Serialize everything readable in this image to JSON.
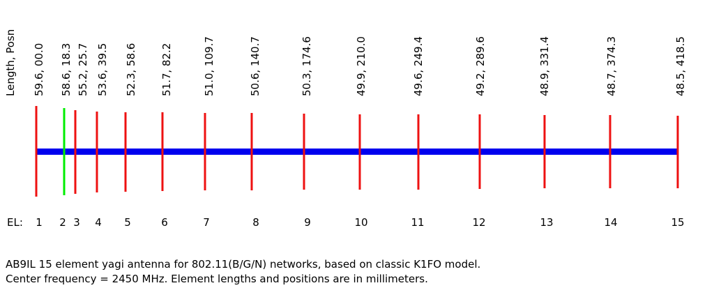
{
  "header_label": "Length, Posn",
  "el_label": "EL:",
  "elements": [
    {
      "label": "59.6, 00.0",
      "number": "1"
    },
    {
      "label": "58.6, 18.3",
      "number": "2"
    },
    {
      "label": "55.2, 25.7",
      "number": "3"
    },
    {
      "label": "53.6, 39.5",
      "number": "4"
    },
    {
      "label": "52.3, 58.6",
      "number": "5"
    },
    {
      "label": "51.7, 82.2",
      "number": "6"
    },
    {
      "label": "51.0, 109.7",
      "number": "7"
    },
    {
      "label": "50.6, 140.7",
      "number": "8"
    },
    {
      "label": "50.3, 174.6",
      "number": "9"
    },
    {
      "label": "49.9, 210.0",
      "number": "10"
    },
    {
      "label": "49.6, 249.4",
      "number": "11"
    },
    {
      "label": "49.2, 289.6",
      "number": "12"
    },
    {
      "label": "48.9, 331.4",
      "number": "13"
    },
    {
      "label": "48.7, 374.3",
      "number": "14"
    },
    {
      "label": "48.5, 418.5",
      "number": "15"
    }
  ],
  "caption": [
    "AB9IL 15 element yagi antenna for 802.11(B/G/N) networks, based on classic K1FO model.",
    "Center frequency = 2450 MHz.  Element lengths and positions are in millimeters."
  ]
}
